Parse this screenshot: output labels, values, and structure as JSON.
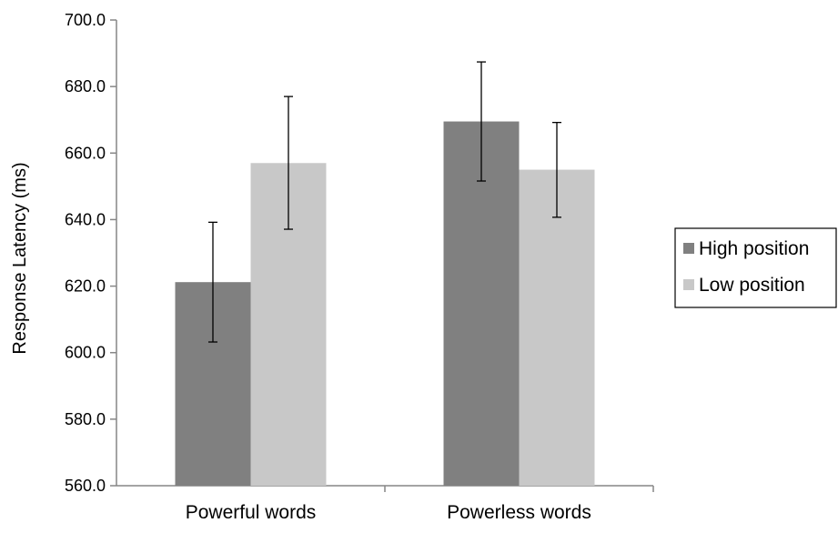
{
  "chart_data": {
    "type": "bar",
    "title": "",
    "xlabel": "",
    "ylabel": "Response Latency (ms)",
    "ylim": [
      560,
      700
    ],
    "y_ticks": [
      560,
      580,
      600,
      620,
      640,
      660,
      680,
      700
    ],
    "y_tick_labels": [
      "560.0",
      "580.0",
      "600.0",
      "620.0",
      "640.0",
      "660.0",
      "680.0",
      "700.0"
    ],
    "categories": [
      "Powerful words",
      "Powerless words"
    ],
    "series": [
      {
        "name": "High position",
        "color": "#808080",
        "values": [
          621.2,
          669.5
        ],
        "error_low": [
          603.2,
          651.6
        ],
        "error_high": [
          639.2,
          687.4
        ]
      },
      {
        "name": "Low position",
        "color": "#c8c8c8",
        "values": [
          657.0,
          655.0
        ],
        "error_low": [
          637.1,
          640.7
        ],
        "error_high": [
          677.0,
          669.2
        ]
      }
    ],
    "grid": false,
    "legend_position": "right"
  }
}
